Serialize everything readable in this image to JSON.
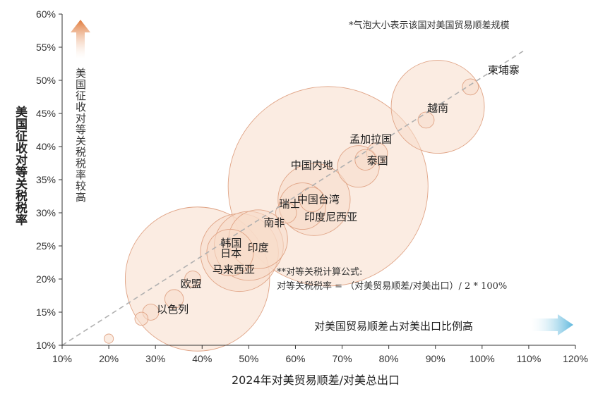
{
  "chart_data": {
    "type": "scatter",
    "xlabel": "2024年对美贸易顺差/对美总出口",
    "ylabel": "美国征收对等关税税率",
    "xlim": [
      10,
      120
    ],
    "ylim": [
      10,
      60
    ],
    "x_ticks": [
      "10%",
      "20%",
      "30%",
      "40%",
      "50%",
      "60%",
      "70%",
      "80%",
      "90%",
      "100%",
      "110%",
      "120%"
    ],
    "y_ticks": [
      "10%",
      "15%",
      "20%",
      "25%",
      "30%",
      "35%",
      "40%",
      "45%",
      "50%",
      "55%",
      "60%"
    ],
    "grid": false,
    "trend_line": {
      "from": [
        10,
        10
      ],
      "to": [
        109,
        54.5
      ]
    },
    "points": [
      {
        "label": "柬埔寨",
        "x": 97.5,
        "y": 49,
        "size": 0.03
      },
      {
        "label": "越南",
        "x": 90.5,
        "y": 46,
        "size": 1.0
      },
      {
        "label": "",
        "x": 88,
        "y": 44,
        "size": 0.03
      },
      {
        "label": "孟加拉国",
        "x": 77.5,
        "y": 39,
        "size": 0.05
      },
      {
        "label": "",
        "x": 75,
        "y": 38,
        "size": 0.05
      },
      {
        "label": "中国内地",
        "x": 67,
        "y": 34,
        "size": 4.6
      },
      {
        "label": "泰国",
        "x": 73.5,
        "y": 37,
        "size": 0.2
      },
      {
        "label": "中国台湾",
        "x": 64,
        "y": 32,
        "size": 0.6
      },
      {
        "label": "瑞士",
        "x": 61.5,
        "y": 31,
        "size": 0.25
      },
      {
        "label": "印度尼西亚",
        "x": 63.5,
        "y": 32,
        "size": 0.07
      },
      {
        "label": "南非",
        "x": 58,
        "y": 30,
        "size": 0.05
      },
      {
        "label": "韩国",
        "x": 50,
        "y": 25,
        "size": 0.55
      },
      {
        "label": "印度",
        "x": 52,
        "y": 26,
        "size": 0.4
      },
      {
        "label": "日本",
        "x": 48,
        "y": 24,
        "size": 0.7
      },
      {
        "label": "马来西亚",
        "x": 46,
        "y": 24,
        "size": 0.25
      },
      {
        "label": "欧盟",
        "x": 39,
        "y": 20,
        "size": 2.4
      },
      {
        "label": "以色列",
        "x": 34,
        "y": 17,
        "size": 0.04
      },
      {
        "label": "",
        "x": 29,
        "y": 15,
        "size": 0.03
      },
      {
        "label": "",
        "x": 27,
        "y": 14,
        "size": 0.02
      },
      {
        "label": "",
        "x": 20,
        "y": 11,
        "size": 0.01
      },
      {
        "label": "",
        "x": 38,
        "y": 20,
        "size": 0.03
      }
    ],
    "annotations": {
      "bubble_note": "*气泡大小表示该国对美国贸易顺差规模",
      "formula_title": "**对等关税计算公式:",
      "formula": "对等关税税率 = （对美贸易顺差/对美出口）/ 2 * 100%",
      "up_arrow_text": "美国征收对等关税税率较高",
      "right_arrow_text": "对美国贸易顺差占对美出口比例高"
    },
    "colors": {
      "bubble_fill": "#f7dccb",
      "bubble_stroke": "#e0a486",
      "trend_line": "#b0b0b0",
      "arrow_up_top": "#e07a3a",
      "arrow_right": "#5fb8dd"
    }
  }
}
